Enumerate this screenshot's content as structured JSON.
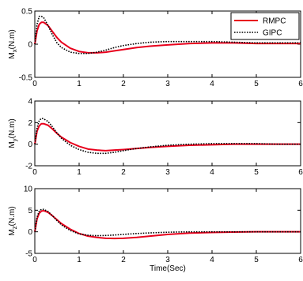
{
  "chart_data": [
    {
      "type": "line",
      "ylabel_main": "M",
      "ylabel_sub": "x",
      "ylabel_unit": "(N.m)",
      "xlim": [
        0,
        6
      ],
      "ylim": [
        -0.5,
        0.5
      ],
      "xticks": [
        "0",
        "1",
        "2",
        "3",
        "4",
        "5",
        "6"
      ],
      "yticks": [
        "-0.5",
        "0",
        "0.5"
      ],
      "legend": {
        "placement": "top-right",
        "entries": [
          "RMPC",
          "GIPC"
        ]
      },
      "series": [
        {
          "name": "RMPC",
          "color": "#e8001c",
          "style": "solid",
          "x": [
            0,
            0.05,
            0.1,
            0.15,
            0.2,
            0.3,
            0.4,
            0.5,
            0.6,
            0.8,
            1.0,
            1.2,
            1.4,
            1.6,
            1.8,
            2.0,
            2.3,
            2.6,
            3.0,
            3.5,
            4.0,
            4.5,
            5.0,
            5.5,
            6.0
          ],
          "y": [
            0,
            0.2,
            0.3,
            0.33,
            0.33,
            0.28,
            0.19,
            0.1,
            0.03,
            -0.06,
            -0.11,
            -0.13,
            -0.13,
            -0.12,
            -0.1,
            -0.08,
            -0.05,
            -0.03,
            -0.01,
            0.01,
            0.02,
            0.02,
            0.01,
            0.01,
            0.01
          ]
        },
        {
          "name": "GIPC",
          "color": "#000000",
          "style": "dotted",
          "x": [
            0,
            0.05,
            0.1,
            0.15,
            0.2,
            0.3,
            0.4,
            0.5,
            0.6,
            0.8,
            1.0,
            1.2,
            1.4,
            1.6,
            1.8,
            2.0,
            2.3,
            2.6,
            3.0,
            3.5,
            4.0,
            4.5,
            5.0,
            5.5,
            6.0
          ],
          "y": [
            0,
            0.3,
            0.42,
            0.42,
            0.4,
            0.28,
            0.14,
            0.02,
            -0.05,
            -0.12,
            -0.14,
            -0.14,
            -0.12,
            -0.09,
            -0.05,
            -0.02,
            0.01,
            0.03,
            0.04,
            0.04,
            0.04,
            0.03,
            0.02,
            0.02,
            0.02
          ]
        }
      ]
    },
    {
      "type": "line",
      "ylabel_main": "M",
      "ylabel_sub": "y",
      "ylabel_unit": "(N.m)",
      "xlim": [
        0,
        6
      ],
      "ylim": [
        -2,
        4
      ],
      "xticks": [
        "0",
        "1",
        "2",
        "3",
        "4",
        "5",
        "6"
      ],
      "yticks": [
        "-2",
        "0",
        "2",
        "4"
      ],
      "series": [
        {
          "name": "RMPC",
          "color": "#e8001c",
          "style": "solid",
          "x": [
            0,
            0.05,
            0.1,
            0.15,
            0.2,
            0.3,
            0.4,
            0.5,
            0.6,
            0.8,
            1.0,
            1.2,
            1.4,
            1.6,
            1.8,
            2.0,
            2.3,
            2.6,
            3.0,
            3.5,
            4.0,
            4.5,
            5.0,
            5.5,
            6.0
          ],
          "y": [
            0,
            1.2,
            1.7,
            1.9,
            1.9,
            1.75,
            1.4,
            1.0,
            0.65,
            0.15,
            -0.2,
            -0.45,
            -0.55,
            -0.6,
            -0.55,
            -0.5,
            -0.4,
            -0.3,
            -0.2,
            -0.1,
            -0.05,
            0,
            0,
            0,
            0
          ]
        },
        {
          "name": "GIPC",
          "color": "#000000",
          "style": "dotted",
          "x": [
            0,
            0.05,
            0.1,
            0.15,
            0.2,
            0.3,
            0.4,
            0.5,
            0.6,
            0.8,
            1.0,
            1.2,
            1.4,
            1.6,
            1.8,
            2.0,
            2.3,
            2.6,
            3.0,
            3.5,
            4.0,
            4.5,
            5.0,
            5.5,
            6.0
          ],
          "y": [
            0,
            1.5,
            2.2,
            2.4,
            2.35,
            2.1,
            1.6,
            1.05,
            0.55,
            -0.1,
            -0.5,
            -0.75,
            -0.85,
            -0.85,
            -0.75,
            -0.6,
            -0.4,
            -0.25,
            -0.1,
            0,
            0.05,
            0.05,
            0.05,
            0,
            0
          ]
        }
      ]
    },
    {
      "type": "line",
      "ylabel_main": "M",
      "ylabel_sub": "z",
      "ylabel_unit": "(N.m)",
      "xlabel": "Time(Sec)",
      "xlim": [
        0,
        6
      ],
      "ylim": [
        -5,
        10
      ],
      "xticks": [
        "0",
        "1",
        "2",
        "3",
        "4",
        "5",
        "6"
      ],
      "yticks": [
        "-5",
        "0",
        "5",
        "10"
      ],
      "series": [
        {
          "name": "RMPC",
          "color": "#e8001c",
          "style": "solid",
          "x": [
            0,
            0.05,
            0.1,
            0.15,
            0.2,
            0.3,
            0.4,
            0.5,
            0.6,
            0.8,
            1.0,
            1.2,
            1.4,
            1.6,
            1.8,
            2.0,
            2.3,
            2.6,
            3.0,
            3.5,
            4.0,
            4.5,
            5.0,
            5.5,
            6.0
          ],
          "y": [
            0,
            3.0,
            4.3,
            4.8,
            4.9,
            4.5,
            3.7,
            2.8,
            1.9,
            0.6,
            -0.4,
            -1.0,
            -1.3,
            -1.5,
            -1.55,
            -1.5,
            -1.3,
            -1.0,
            -0.6,
            -0.3,
            -0.15,
            -0.05,
            0,
            0,
            0
          ]
        },
        {
          "name": "GIPC",
          "color": "#000000",
          "style": "dotted",
          "x": [
            0,
            0.05,
            0.1,
            0.15,
            0.2,
            0.3,
            0.4,
            0.5,
            0.6,
            0.8,
            1.0,
            1.2,
            1.4,
            1.6,
            1.8,
            2.0,
            2.3,
            2.6,
            3.0,
            3.5,
            4.0,
            4.5,
            5.0,
            5.5,
            6.0
          ],
          "y": [
            0,
            3.4,
            4.8,
            5.2,
            5.2,
            4.7,
            3.7,
            2.6,
            1.6,
            0.3,
            -0.5,
            -0.8,
            -0.9,
            -0.85,
            -0.75,
            -0.6,
            -0.4,
            -0.25,
            -0.1,
            0,
            0,
            0,
            0,
            0,
            0
          ]
        }
      ]
    }
  ]
}
